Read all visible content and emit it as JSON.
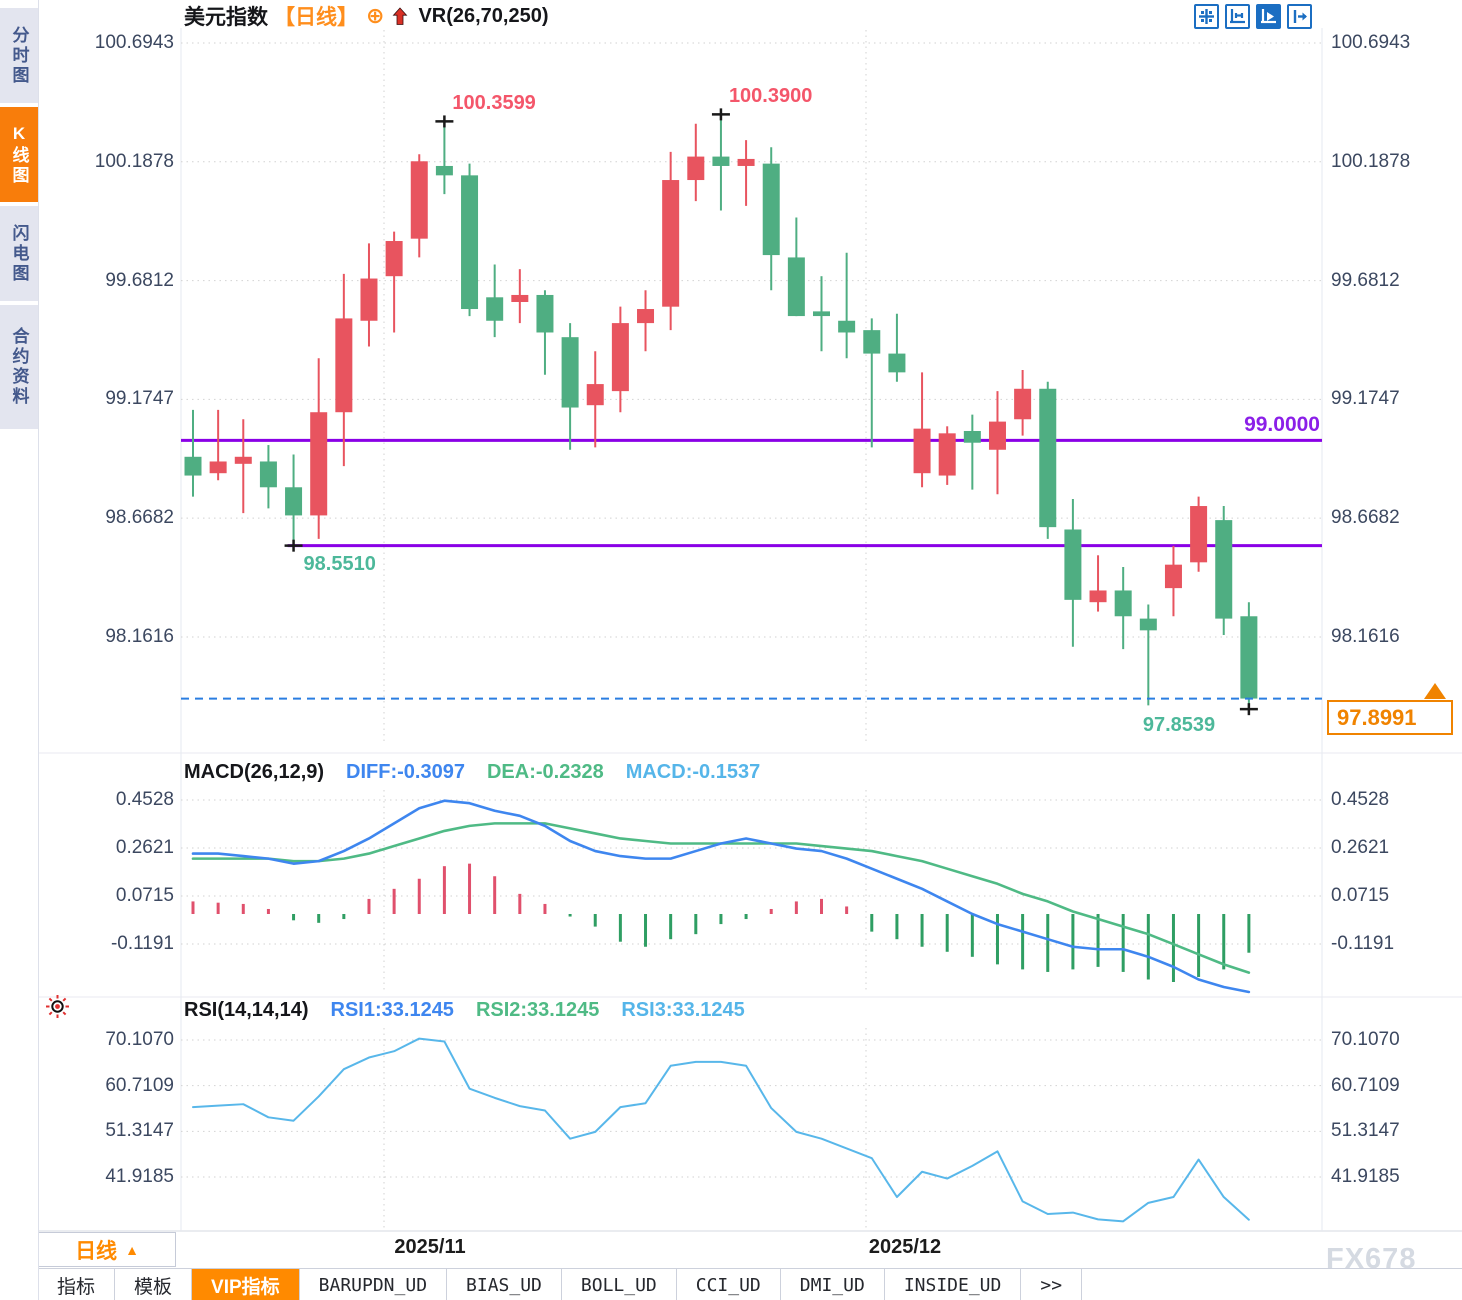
{
  "window": {
    "watermark": "FX678"
  },
  "colors": {
    "up": "#e8545f",
    "down": "#4fae82",
    "hist_up": "#e0506c",
    "hist_down": "#2f9e63",
    "diff_line": "#3e86ef",
    "dea_line": "#4fba85",
    "rsi_line": "#58b7ea",
    "support_line": "#8a00e6",
    "price_line": "#2a7de1",
    "accent": "#ff8a00",
    "annotation_high": "#f4566a",
    "annotation_low": "#4db89a",
    "cross": "#1a1a1a"
  },
  "sidebar": {
    "items": [
      {
        "label": "分时图",
        "active": false
      },
      {
        "label": "K线图",
        "active": true
      },
      {
        "label": "闪电图",
        "active": false
      },
      {
        "label": "合约资料",
        "active": false
      }
    ]
  },
  "header": {
    "symbol": "美元指数",
    "period_tag": "【日线】",
    "add_glyph": "⊕",
    "overlay_indicator": "VR(26,70,250)"
  },
  "toolbar": {
    "icons": [
      {
        "name": "crosshair-move-icon",
        "active": false
      },
      {
        "name": "axis-zoom-icon",
        "active": false
      },
      {
        "name": "axis-play-icon",
        "active": true
      },
      {
        "name": "pan-right-icon",
        "active": false
      }
    ]
  },
  "macd_header": {
    "name": "MACD(26,12,9)",
    "diff": "DIFF:-0.3097",
    "dea": "DEA:-0.2328",
    "macd": "MACD:-0.1537"
  },
  "rsi_header": {
    "name": "RSI(14,14,14)",
    "rsi1": "RSI1:33.1245",
    "rsi2": "RSI2:33.1245",
    "rsi3": "RSI3:33.1245"
  },
  "xaxis": {
    "period_label": "日线",
    "period_arrow": "▲"
  },
  "bottom_bar": {
    "tabs": [
      {
        "label": "指标",
        "kind": "action",
        "active": false
      },
      {
        "label": "模板",
        "kind": "action",
        "active": false
      },
      {
        "label": "VIP指标",
        "kind": "action",
        "active": true
      },
      {
        "label": "BARUPDN_UD",
        "kind": "indicator",
        "active": false
      },
      {
        "label": "BIAS_UD",
        "kind": "indicator",
        "active": false
      },
      {
        "label": "BOLL_UD",
        "kind": "indicator",
        "active": false
      },
      {
        "label": "CCI_UD",
        "kind": "indicator",
        "active": false
      },
      {
        "label": "DMI_UD",
        "kind": "indicator",
        "active": false
      },
      {
        "label": "INSIDE_UD",
        "kind": "indicator",
        "active": false
      },
      {
        "label": ">>",
        "kind": "more",
        "active": false
      }
    ]
  },
  "chart_data": {
    "type": "candlestick",
    "title": "美元指数 日线 (US Dollar Index, Daily)",
    "legend_position": "top",
    "grid": true,
    "x_month_labels": [
      "2025/11",
      "2025/12"
    ],
    "yticks_main": [
      "100.6943",
      "100.1878",
      "99.6812",
      "99.1747",
      "98.6682",
      "98.1616"
    ],
    "ylim_main": [
      97.75,
      100.75
    ],
    "candles": [
      [
        98.93,
        99.13,
        98.76,
        98.85
      ],
      [
        98.86,
        99.13,
        98.83,
        98.91
      ],
      [
        98.9,
        99.09,
        98.69,
        98.93
      ],
      [
        98.91,
        98.98,
        98.71,
        98.8
      ],
      [
        98.8,
        98.94,
        98.551,
        98.68
      ],
      [
        98.68,
        99.35,
        98.58,
        99.12
      ],
      [
        99.12,
        99.71,
        98.89,
        99.52
      ],
      [
        99.51,
        99.84,
        99.4,
        99.69
      ],
      [
        99.7,
        99.89,
        99.46,
        99.85
      ],
      [
        99.86,
        100.22,
        99.78,
        100.19
      ],
      [
        100.17,
        100.3599,
        100.05,
        100.13
      ],
      [
        100.13,
        100.18,
        99.53,
        99.56
      ],
      [
        99.61,
        99.75,
        99.44,
        99.51
      ],
      [
        99.59,
        99.73,
        99.5,
        99.62
      ],
      [
        99.62,
        99.64,
        99.28,
        99.46
      ],
      [
        99.44,
        99.5,
        98.96,
        99.14
      ],
      [
        99.15,
        99.38,
        98.97,
        99.24
      ],
      [
        99.21,
        99.57,
        99.12,
        99.5
      ],
      [
        99.5,
        99.64,
        99.38,
        99.56
      ],
      [
        99.57,
        100.23,
        99.47,
        100.11
      ],
      [
        100.11,
        100.35,
        100.02,
        100.21
      ],
      [
        100.21,
        100.39,
        99.98,
        100.17
      ],
      [
        100.17,
        100.28,
        100.0,
        100.2
      ],
      [
        100.18,
        100.25,
        99.64,
        99.79
      ],
      [
        99.78,
        99.95,
        99.53,
        99.53
      ],
      [
        99.55,
        99.7,
        99.38,
        99.53
      ],
      [
        99.51,
        99.8,
        99.35,
        99.46
      ],
      [
        99.47,
        99.52,
        98.97,
        99.37
      ],
      [
        99.37,
        99.54,
        99.25,
        99.29
      ],
      [
        98.86,
        99.29,
        98.8,
        99.05
      ],
      [
        98.85,
        99.06,
        98.81,
        99.03
      ],
      [
        99.04,
        99.11,
        98.79,
        98.99
      ],
      [
        98.96,
        99.21,
        98.77,
        99.08
      ],
      [
        99.09,
        99.3,
        99.02,
        99.22
      ],
      [
        99.22,
        99.25,
        98.58,
        98.63
      ],
      [
        98.62,
        98.75,
        98.12,
        98.32
      ],
      [
        98.31,
        98.51,
        98.27,
        98.36
      ],
      [
        98.36,
        98.46,
        98.11,
        98.25
      ],
      [
        98.24,
        98.3,
        97.87,
        98.19
      ],
      [
        98.37,
        98.55,
        98.25,
        98.47
      ],
      [
        98.48,
        98.76,
        98.44,
        98.72
      ],
      [
        98.66,
        98.72,
        98.17,
        98.24
      ],
      [
        98.25,
        98.31,
        97.8539,
        97.8991
      ]
    ],
    "hlines": [
      {
        "value": 99.0,
        "label": "99.0000",
        "start_candle": 0
      },
      {
        "value": 98.551,
        "label": null,
        "start_candle": 4
      }
    ],
    "current_price_line": {
      "value": 97.8991,
      "label": "97.8991",
      "style": "dashed"
    },
    "annotations": [
      {
        "text": "100.3599",
        "value": 100.3599,
        "candle": 10,
        "placement": "above-right",
        "color": "#f4566a"
      },
      {
        "text": "100.3900",
        "value": 100.39,
        "candle": 21,
        "placement": "above-right",
        "color": "#f4566a"
      },
      {
        "text": "98.5510",
        "value": 98.551,
        "candle": 4,
        "placement": "below-right",
        "color": "#4db89a"
      },
      {
        "text": "97.8539",
        "value": 97.8539,
        "candle": 42,
        "placement": "below-left",
        "color": "#4db89a"
      }
    ],
    "macd": {
      "yticks": [
        "0.4528",
        "0.2621",
        "0.0715",
        "-0.1191"
      ],
      "diff": [
        0.24,
        0.24,
        0.23,
        0.22,
        0.2,
        0.21,
        0.25,
        0.3,
        0.36,
        0.42,
        0.45,
        0.44,
        0.41,
        0.39,
        0.35,
        0.29,
        0.25,
        0.23,
        0.22,
        0.22,
        0.25,
        0.28,
        0.3,
        0.28,
        0.26,
        0.25,
        0.22,
        0.18,
        0.14,
        0.1,
        0.05,
        0.0,
        -0.04,
        -0.07,
        -0.1,
        -0.13,
        -0.14,
        -0.14,
        -0.17,
        -0.21,
        -0.26,
        -0.29,
        -0.3097
      ],
      "dea": [
        0.22,
        0.22,
        0.22,
        0.22,
        0.21,
        0.21,
        0.22,
        0.24,
        0.27,
        0.3,
        0.33,
        0.35,
        0.36,
        0.36,
        0.36,
        0.34,
        0.32,
        0.3,
        0.29,
        0.28,
        0.28,
        0.28,
        0.28,
        0.28,
        0.28,
        0.27,
        0.26,
        0.25,
        0.23,
        0.21,
        0.18,
        0.15,
        0.12,
        0.08,
        0.05,
        0.01,
        -0.02,
        -0.05,
        -0.08,
        -0.12,
        -0.16,
        -0.2,
        -0.2328
      ],
      "hist": [
        0.05,
        0.045,
        0.04,
        0.02,
        -0.025,
        -0.035,
        -0.02,
        0.06,
        0.1,
        0.14,
        0.19,
        0.2,
        0.15,
        0.08,
        0.04,
        -0.01,
        -0.05,
        -0.11,
        -0.13,
        -0.1,
        -0.08,
        -0.04,
        -0.02,
        0.02,
        0.05,
        0.06,
        0.03,
        -0.07,
        -0.1,
        -0.13,
        -0.15,
        -0.17,
        -0.2,
        -0.22,
        -0.23,
        -0.22,
        -0.21,
        -0.23,
        -0.26,
        -0.27,
        -0.25,
        -0.22,
        -0.1537
      ]
    },
    "rsi": {
      "yticks": [
        "70.1070",
        "60.7109",
        "51.3147",
        "41.9185"
      ],
      "values": [
        56.3,
        56.6,
        56.9,
        54.2,
        53.5,
        58.5,
        64.1,
        66.5,
        67.8,
        70.4,
        69.8,
        60.1,
        58.2,
        56.5,
        55.6,
        49.8,
        51.2,
        56.3,
        57.1,
        64.8,
        65.6,
        65.6,
        64.8,
        56.1,
        51.2,
        49.8,
        47.8,
        45.8,
        37.8,
        43.0,
        41.6,
        44.2,
        47.2,
        36.9,
        34.3,
        34.6,
        33.2,
        32.8,
        36.6,
        37.8,
        45.5,
        37.8,
        33.1245
      ]
    }
  }
}
